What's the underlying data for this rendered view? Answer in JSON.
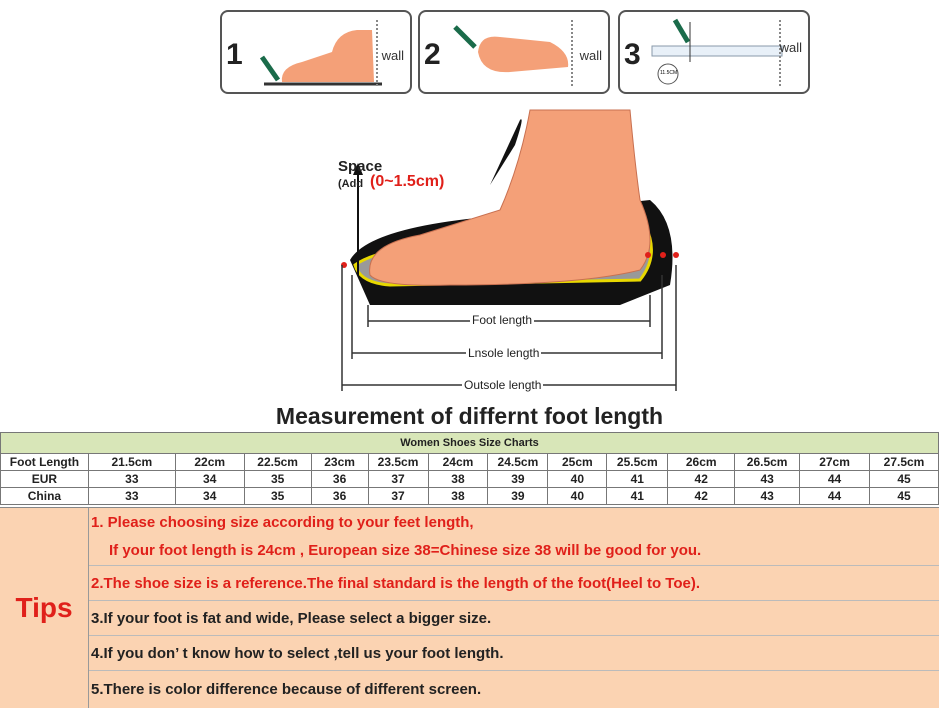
{
  "steps": [
    {
      "number": "1",
      "wall": "wall"
    },
    {
      "number": "2",
      "wall": "wall"
    },
    {
      "number": "3",
      "wall": "wall",
      "ruler_mark": "11.5CM"
    }
  ],
  "illustration": {
    "space": "Space",
    "add_prefix": "(Add",
    "add_range": "(0~1.5cm)",
    "foot_length": "Foot length",
    "insole_length": "Lnsole length",
    "outsole_length": "Outsole length"
  },
  "title": "Measurement of differnt foot length",
  "table": {
    "caption": "Women  Shoes Size Charts",
    "rows": [
      {
        "label": "Foot Length",
        "values": [
          "21.5cm",
          "22cm",
          "22.5cm",
          "23cm",
          "23.5cm",
          "24cm",
          "24.5cm",
          "25cm",
          "25.5cm",
          "26cm",
          "26.5cm",
          "27cm",
          "27.5cm"
        ]
      },
      {
        "label": "EUR",
        "values": [
          "33",
          "34",
          "35",
          "36",
          "37",
          "38",
          "39",
          "40",
          "41",
          "42",
          "43",
          "44",
          "45"
        ]
      },
      {
        "label": "China",
        "values": [
          "33",
          "34",
          "35",
          "36",
          "37",
          "38",
          "39",
          "40",
          "41",
          "42",
          "43",
          "44",
          "45"
        ]
      }
    ]
  },
  "tips": {
    "label": "Tips",
    "items": [
      "1. Please choosing size according to your feet length,",
      "If your foot length is 24cm , European size 38=Chinese size 38 will be good for you.",
      "2.The shoe size is a reference.The final standard is the length of the foot(Heel to Toe).",
      "3.If your foot is fat and wide, Please select a bigger size.",
      "4.If you don’ t know how to select ,tell us your foot length.",
      "5.There is color difference because of different screen."
    ]
  },
  "colors": {
    "accent_red": "#e0201a",
    "caption_green": "#d8e6b8",
    "tips_bg": "#fbd3b2",
    "skin": "#f4a078"
  }
}
